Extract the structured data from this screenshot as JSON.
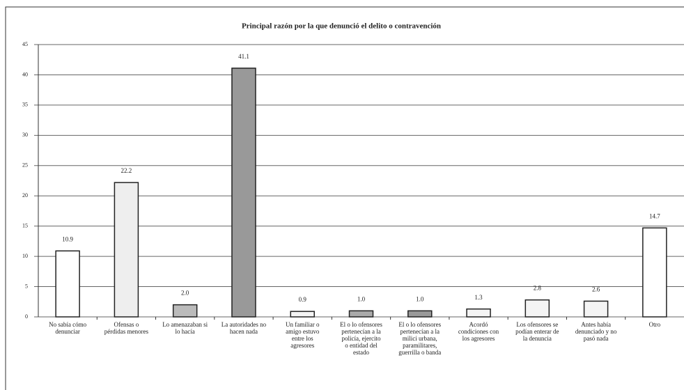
{
  "chart_data": {
    "type": "bar",
    "title": "Principal razón por la que denunció el delito o contravención",
    "categories": [
      "No sabía cómo denunciar",
      "Ofensas o pérdidas menores",
      "Lo amenazaban si lo hacía",
      "La autoridades no hacen nada",
      "Un familiar o amigo estuvo entre los agresores",
      "El o lo ofensores pertenecían a la policía, ejercito o entidad del estado",
      "El o lo ofensores pertenecían a la milici urbana, paramilitares, guerrilla o banda",
      "Acordó condiciones con los agresores",
      "Los ofensores se podían enterar de la denuncia",
      "Antes había denunciado y no pasó nada",
      "Otro"
    ],
    "values": [
      10.9,
      22.2,
      2.0,
      41.1,
      0.9,
      1.0,
      1.0,
      1.3,
      2.8,
      2.6,
      14.7
    ],
    "value_labels": [
      "10.9",
      "22.2",
      "2.0",
      "41.1",
      "0.9",
      "1.0",
      "1.0",
      "1.3",
      "2.8",
      "2.6",
      "14.7"
    ],
    "colors": [
      "#ffffff",
      "#eeeeee",
      "#bbbbbb",
      "#999999",
      "#f4f4f4",
      "#aaaaaa",
      "#999999",
      "#f4f4f4",
      "#f4f4f4",
      "#f4f4f4",
      "#ffffff"
    ],
    "ylim": [
      0,
      45
    ],
    "yticks": [
      0,
      5,
      10,
      15,
      20,
      25,
      30,
      35,
      40,
      45
    ],
    "grid": true
  }
}
